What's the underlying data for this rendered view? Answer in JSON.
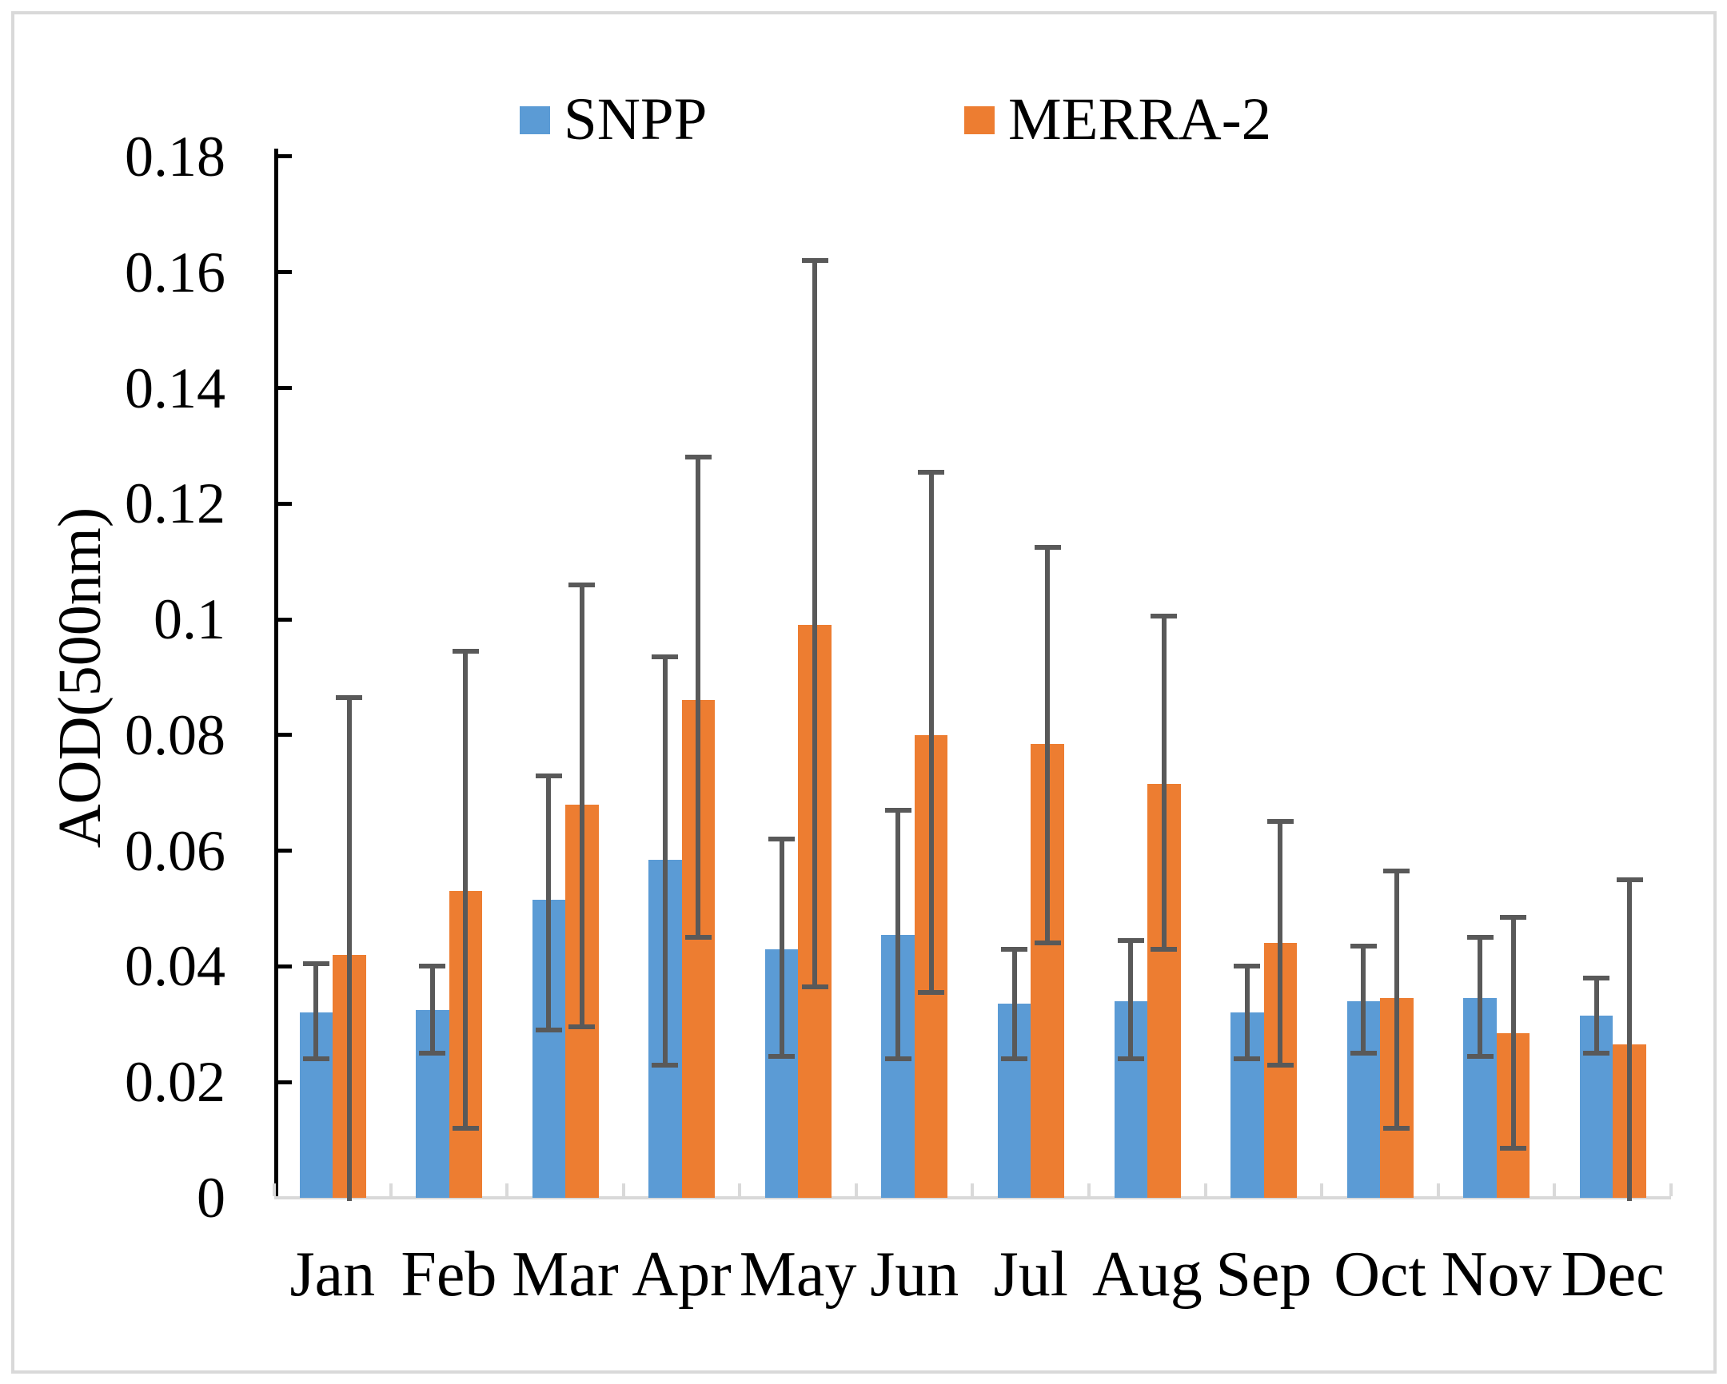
{
  "figure": {
    "background_color": "#ffffff",
    "border_color": "#d9d9d9"
  },
  "chart_data": {
    "type": "bar",
    "title": "",
    "categories": [
      "Jan",
      "Feb",
      "Mar",
      "Apr",
      "May",
      "Jun",
      "Jul",
      "Aug",
      "Sep",
      "Oct",
      "Nov",
      "Dec"
    ],
    "series": [
      {
        "name": "SNPP",
        "color": "#5B9BD5",
        "values": [
          0.032,
          0.0325,
          0.0515,
          0.0585,
          0.043,
          0.0455,
          0.0335,
          0.034,
          0.032,
          0.034,
          0.0345,
          0.0315
        ],
        "error_low": [
          0.024,
          0.025,
          0.029,
          0.023,
          0.0245,
          0.024,
          0.024,
          0.024,
          0.024,
          0.025,
          0.0245,
          0.025
        ],
        "error_high": [
          0.0405,
          0.04,
          0.073,
          0.0935,
          0.062,
          0.067,
          0.043,
          0.0445,
          0.04,
          0.0435,
          0.045,
          0.038
        ]
      },
      {
        "name": "MERRA-2",
        "color": "#ED7D31",
        "values": [
          0.042,
          0.053,
          0.068,
          0.086,
          0.099,
          0.08,
          0.0785,
          0.0715,
          0.044,
          0.0345,
          0.0285,
          0.0265
        ],
        "error_low": [
          -0.002,
          0.012,
          0.0295,
          0.045,
          0.0365,
          0.0355,
          0.044,
          0.043,
          0.023,
          0.012,
          0.0085,
          -0.002
        ],
        "error_high": [
          0.0865,
          0.0945,
          0.106,
          0.128,
          0.162,
          0.1255,
          0.1125,
          0.1005,
          0.065,
          0.0565,
          0.0485,
          0.055
        ]
      }
    ],
    "error_bar_color": "#595959",
    "legend_position": "top",
    "grid": false,
    "y_axis": {
      "title": "AOD(500nm)",
      "min": 0,
      "max": 0.18,
      "tick_step": 0.02,
      "tick_labels": [
        "0",
        "0.02",
        "0.04",
        "0.06",
        "0.08",
        "0.1",
        "0.12",
        "0.14",
        "0.16",
        "0.18"
      ],
      "axis_color": "#000000"
    },
    "x_axis": {
      "axis_color": "#d9d9d9"
    }
  }
}
